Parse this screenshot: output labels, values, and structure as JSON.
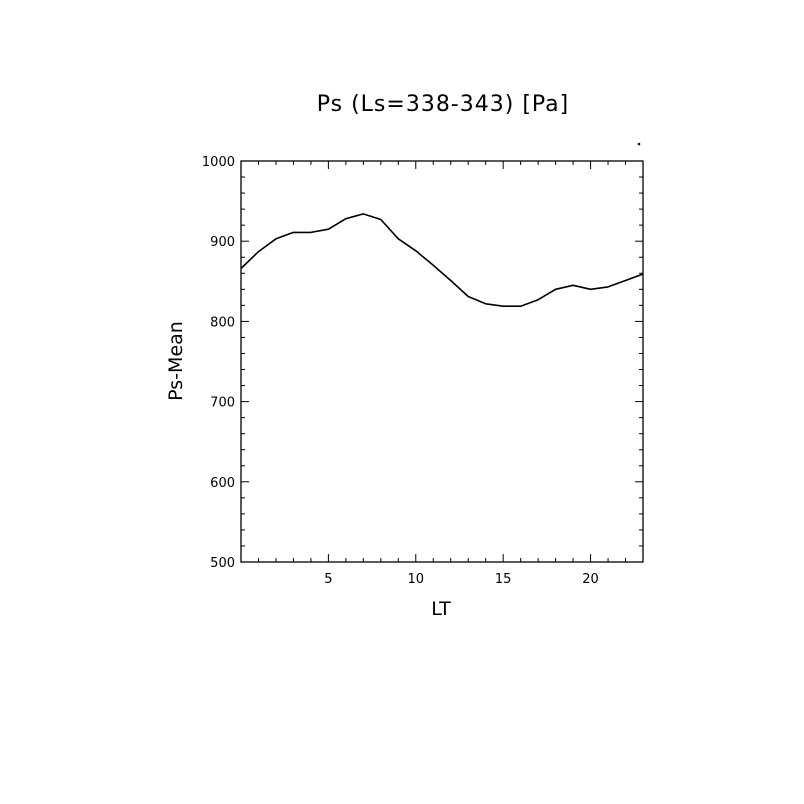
{
  "chart_data": {
    "type": "line",
    "title": "Ps (Ls=338-343) [Pa]",
    "xlabel": "LT",
    "ylabel": "Ps-Mean",
    "xlim": [
      0,
      23
    ],
    "ylim": [
      500,
      1000
    ],
    "x_ticks": [
      5,
      10,
      15,
      20
    ],
    "y_ticks": [
      500,
      600,
      700,
      800,
      900,
      1000
    ],
    "grid": false,
    "series": [
      {
        "x": [
          0,
          1,
          2,
          3,
          4,
          5,
          6,
          7,
          8,
          9,
          10,
          11,
          12,
          13,
          14,
          15,
          16,
          17,
          18,
          19,
          20,
          21,
          22,
          23
        ],
        "values": [
          866,
          887,
          903,
          911,
          911,
          915,
          928,
          934,
          927,
          903,
          888,
          870,
          851,
          831,
          822,
          819,
          819,
          827,
          840,
          845,
          840,
          843,
          851,
          859
        ]
      }
    ]
  }
}
